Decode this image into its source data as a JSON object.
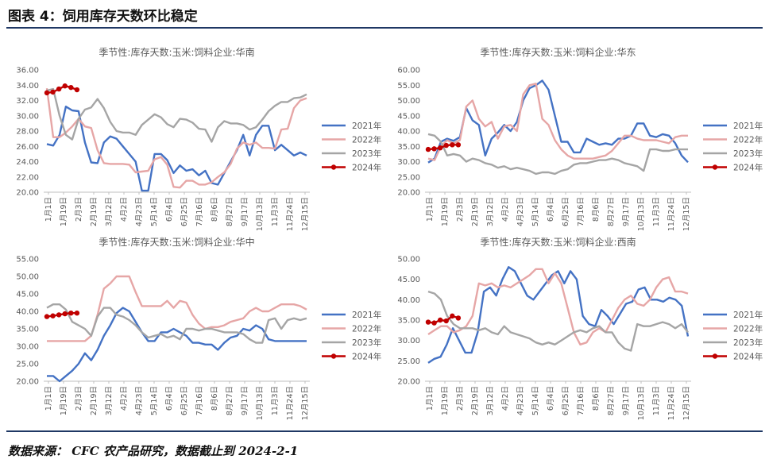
{
  "header": {
    "title": "图表 4：饲用库存天数环比稳定"
  },
  "footer": {
    "source": "数据来源：  CFC 农产品研究，数据截止到 2024-2-1"
  },
  "colors": {
    "y2021": "#4472c4",
    "y2022": "#e6a6a6",
    "y2023": "#a5a5a5",
    "y2024": "#c00000"
  },
  "chart_data": [
    {
      "type": "line",
      "title": "季节性:库存天数:玉米:饲料企业:华南",
      "x_ticks": [
        "1月1日",
        "1月19日",
        "2月3日",
        "2月19日",
        "3月12日",
        "4月2日",
        "4月23日",
        "5月14日",
        "6月4日",
        "6月25日",
        "7月16日",
        "8月6日",
        "8月27日",
        "9月17日",
        "10月13日",
        "11月3日",
        "11月24日",
        "12月15日"
      ],
      "ylim": [
        20,
        36
      ],
      "y_ticks": [
        "20.00",
        "22.00",
        "24.00",
        "26.00",
        "28.00",
        "30.00",
        "32.00",
        "34.00",
        "36.00"
      ],
      "series": [
        {
          "name": "2021年",
          "values": [
            26.3,
            26.1,
            27.5,
            31.2,
            30.7,
            30.6,
            26.5,
            23.9,
            23.8,
            26.5,
            27.3,
            27.0,
            26.0,
            25.0,
            24.0,
            20.2,
            20.2,
            25.0,
            25.0,
            24.2,
            22.5,
            23.5,
            22.8,
            23.0,
            22.2,
            22.8,
            21.2,
            21.0,
            22.5,
            24.0,
            25.5,
            27.5,
            24.8,
            27.5,
            28.7,
            28.7,
            25.5,
            26.2,
            25.5,
            24.8,
            25.2,
            24.8
          ]
        },
        {
          "name": "2022年",
          "values": [
            33.6,
            27.2,
            27.2,
            27.8,
            28.6,
            29.6,
            28.6,
            28.4,
            25.5,
            23.8,
            23.7,
            23.7,
            23.7,
            23.6,
            22.6,
            22.7,
            22.8,
            24.3,
            24.6,
            23.6,
            20.7,
            20.6,
            21.5,
            21.5,
            21.0,
            21.0,
            21.3,
            22.0,
            22.6,
            23.7,
            25.7,
            26.5,
            26.2,
            26.5,
            25.8,
            25.8,
            25.7,
            28.2,
            28.3,
            31.0,
            32.0,
            32.3
          ]
        },
        {
          "name": "2023年",
          "values": [
            33.3,
            33.5,
            30.0,
            27.5,
            26.9,
            29.6,
            30.8,
            31.1,
            32.2,
            31.0,
            29.2,
            28.0,
            27.8,
            27.8,
            27.5,
            28.8,
            29.5,
            30.2,
            29.8,
            28.9,
            28.5,
            29.6,
            29.5,
            29.1,
            28.3,
            28.2,
            26.6,
            28.5,
            29.3,
            29.0,
            29.0,
            28.8,
            28.2,
            28.5,
            29.5,
            30.6,
            31.3,
            31.8,
            31.8,
            32.3,
            32.4,
            32.8
          ]
        },
        {
          "name": "2024年",
          "values": [
            33.0,
            33.1,
            33.5,
            33.9,
            33.7,
            33.4
          ]
        }
      ]
    },
    {
      "type": "line",
      "title": "季节性:库存天数:玉米:饲料企业:华东",
      "x_ticks": [
        "1月1日",
        "1月19日",
        "2月3日",
        "2月19日",
        "3月12日",
        "4月2日",
        "4月23日",
        "5月14日",
        "6月4日",
        "6月25日",
        "7月16日",
        "8月6日",
        "8月27日",
        "9月17日",
        "10月13日",
        "11月3日",
        "11月24日",
        "12月15日"
      ],
      "ylim": [
        20,
        60
      ],
      "y_ticks": [
        "20.00",
        "25.00",
        "30.00",
        "35.00",
        "40.00",
        "45.00",
        "50.00",
        "55.00",
        "60.00"
      ],
      "series": [
        {
          "name": "2021年",
          "values": [
            29.7,
            31.0,
            36.5,
            37.5,
            36.8,
            38.0,
            47.5,
            43.5,
            42.0,
            32.0,
            37.5,
            39.5,
            42.0,
            40.0,
            43.0,
            50.0,
            54.0,
            55.0,
            56.5,
            53.5,
            45.0,
            36.5,
            36.5,
            33.0,
            33.0,
            37.5,
            36.5,
            35.5,
            36.0,
            35.5,
            37.5,
            37.5,
            38.5,
            42.5,
            42.5,
            38.5,
            38.0,
            39.0,
            38.5,
            36.0,
            32.0,
            29.8
          ]
        },
        {
          "name": "2022年",
          "values": [
            31.0,
            30.5,
            35.0,
            37.0,
            36.0,
            37.0,
            48.0,
            50.0,
            44.0,
            41.5,
            43.0,
            37.5,
            41.5,
            42.0,
            40.0,
            52.0,
            55.0,
            55.5,
            44.0,
            42.0,
            37.0,
            34.0,
            32.0,
            31.0,
            31.0,
            31.0,
            31.0,
            31.5,
            32.0,
            33.5,
            36.0,
            38.5,
            38.5,
            37.5,
            37.0,
            37.0,
            37.0,
            36.5,
            36.0,
            38.0,
            38.5,
            38.5
          ]
        },
        {
          "name": "2023年",
          "values": [
            39.0,
            38.5,
            36.5,
            32.0,
            32.5,
            32.0,
            30.0,
            31.0,
            30.5,
            29.5,
            29.0,
            28.0,
            28.5,
            27.5,
            28.0,
            27.5,
            27.0,
            26.0,
            26.5,
            26.5,
            26.0,
            27.0,
            27.5,
            29.0,
            29.5,
            29.5,
            30.0,
            30.5,
            30.5,
            31.0,
            30.5,
            29.5,
            29.0,
            28.5,
            27.0,
            34.0,
            34.0,
            33.5,
            33.5,
            34.0,
            34.0,
            34.0
          ]
        },
        {
          "name": "2024年",
          "values": [
            34.0,
            34.2,
            34.5,
            35.3,
            35.5,
            35.5
          ]
        }
      ]
    },
    {
      "type": "line",
      "title": "季节性:库存天数:玉米:饲料企业:华中",
      "x_ticks": [
        "1月1日",
        "1月19日",
        "2月3日",
        "2月19日",
        "3月12日",
        "4月2日",
        "4月23日",
        "5月14日",
        "6月4日",
        "6月25日",
        "7月16日",
        "8月6日",
        "8月27日",
        "9月17日",
        "10月13日",
        "11月3日",
        "11月24日",
        "12月15日"
      ],
      "ylim": [
        20,
        55
      ],
      "y_ticks": [
        "20.00",
        "25.00",
        "30.00",
        "35.00",
        "40.00",
        "45.00",
        "50.00",
        "55.00"
      ],
      "series": [
        {
          "name": "2021年",
          "values": [
            21.5,
            21.5,
            20.0,
            21.5,
            23.0,
            25.0,
            28.0,
            26.0,
            29.0,
            33.0,
            36.0,
            39.5,
            41.0,
            40.0,
            37.0,
            34.0,
            31.5,
            31.5,
            34.0,
            34.0,
            35.0,
            34.0,
            33.0,
            31.0,
            31.0,
            30.5,
            30.5,
            29.0,
            31.0,
            32.5,
            33.0,
            35.0,
            34.5,
            36.0,
            35.0,
            32.0,
            31.5,
            31.5,
            31.5,
            31.5,
            31.5,
            31.5
          ]
        },
        {
          "name": "2022年",
          "values": [
            31.5,
            31.5,
            31.5,
            31.5,
            31.5,
            31.5,
            31.5,
            33.0,
            39.0,
            46.5,
            48.0,
            50.0,
            50.0,
            50.0,
            45.5,
            41.5,
            41.5,
            41.5,
            41.5,
            43.0,
            41.0,
            43.0,
            42.5,
            39.0,
            36.5,
            35.0,
            35.5,
            35.5,
            36.0,
            37.0,
            37.5,
            38.0,
            40.0,
            41.0,
            40.0,
            40.0,
            41.0,
            42.0,
            42.0,
            42.0,
            41.5,
            40.5
          ]
        },
        {
          "name": "2023年",
          "values": [
            41.0,
            42.0,
            42.0,
            40.5,
            37.0,
            36.0,
            35.0,
            33.0,
            38.5,
            41.0,
            41.0,
            39.0,
            38.5,
            37.5,
            36.0,
            34.0,
            32.5,
            33.0,
            33.5,
            32.5,
            33.0,
            32.0,
            35.0,
            35.0,
            34.5,
            35.0,
            35.0,
            34.5,
            34.0,
            34.0,
            34.0,
            33.5,
            32.0,
            31.0,
            31.0,
            37.5,
            38.0,
            35.0,
            37.5,
            38.0,
            37.5,
            38.0
          ]
        },
        {
          "name": "2024年",
          "values": [
            38.5,
            38.7,
            39.0,
            39.3,
            39.5,
            39.5
          ]
        }
      ]
    },
    {
      "type": "line",
      "title": "季节性:库存天数:玉米:饲料企业:西南",
      "x_ticks": [
        "1月1日",
        "1月19日",
        "2月3日",
        "2月19日",
        "3月12日",
        "4月2日",
        "4月23日",
        "5月14日",
        "6月4日",
        "6月25日",
        "7月16日",
        "8月6日",
        "8月27日",
        "9月17日",
        "10月13日",
        "11月3日",
        "11月24日",
        "12月15日"
      ],
      "ylim": [
        20,
        50
      ],
      "y_ticks": [
        "20.00",
        "25.00",
        "30.00",
        "35.00",
        "40.00",
        "45.00",
        "50.00"
      ],
      "series": [
        {
          "name": "2021年",
          "values": [
            24.5,
            25.5,
            26.0,
            29.0,
            33.0,
            30.0,
            27.0,
            27.0,
            32.0,
            42.0,
            43.0,
            41.0,
            45.0,
            48.0,
            47.0,
            44.0,
            41.0,
            40.0,
            42.0,
            44.0,
            46.0,
            47.0,
            44.0,
            47.0,
            45.0,
            36.0,
            34.0,
            33.5,
            37.5,
            36.0,
            34.0,
            36.5,
            39.0,
            39.5,
            42.5,
            43.0,
            40.0,
            40.0,
            39.5,
            40.5,
            40.0,
            38.5,
            31.0
          ]
        },
        {
          "name": "2022年",
          "values": [
            31.5,
            32.5,
            33.5,
            33.5,
            32.0,
            32.5,
            33.5,
            36.0,
            44.0,
            43.5,
            44.0,
            43.0,
            43.5,
            43.0,
            44.0,
            45.0,
            46.0,
            47.5,
            47.5,
            44.0,
            46.5,
            44.0,
            38.0,
            32.0,
            29.0,
            29.5,
            32.0,
            33.0,
            32.0,
            35.0,
            38.0,
            40.0,
            41.0,
            39.0,
            38.5,
            40.0,
            43.0,
            45.0,
            45.5,
            42.0,
            42.0,
            41.5
          ]
        },
        {
          "name": "2023年",
          "values": [
            42.0,
            41.5,
            40.0,
            36.0,
            34.0,
            33.0,
            33.0,
            33.0,
            32.5,
            33.0,
            32.0,
            31.5,
            33.5,
            32.0,
            31.5,
            31.0,
            30.5,
            29.5,
            29.0,
            29.5,
            29.0,
            30.0,
            31.0,
            32.0,
            32.5,
            32.0,
            33.0,
            33.5,
            32.0,
            32.0,
            29.5,
            28.0,
            27.5,
            34.0,
            33.5,
            33.5,
            34.0,
            34.5,
            34.0,
            33.0,
            34.0,
            32.0
          ]
        },
        {
          "name": "2024年",
          "values": [
            34.5,
            34.3,
            35.0,
            34.8,
            36.0,
            35.5
          ]
        }
      ]
    }
  ]
}
